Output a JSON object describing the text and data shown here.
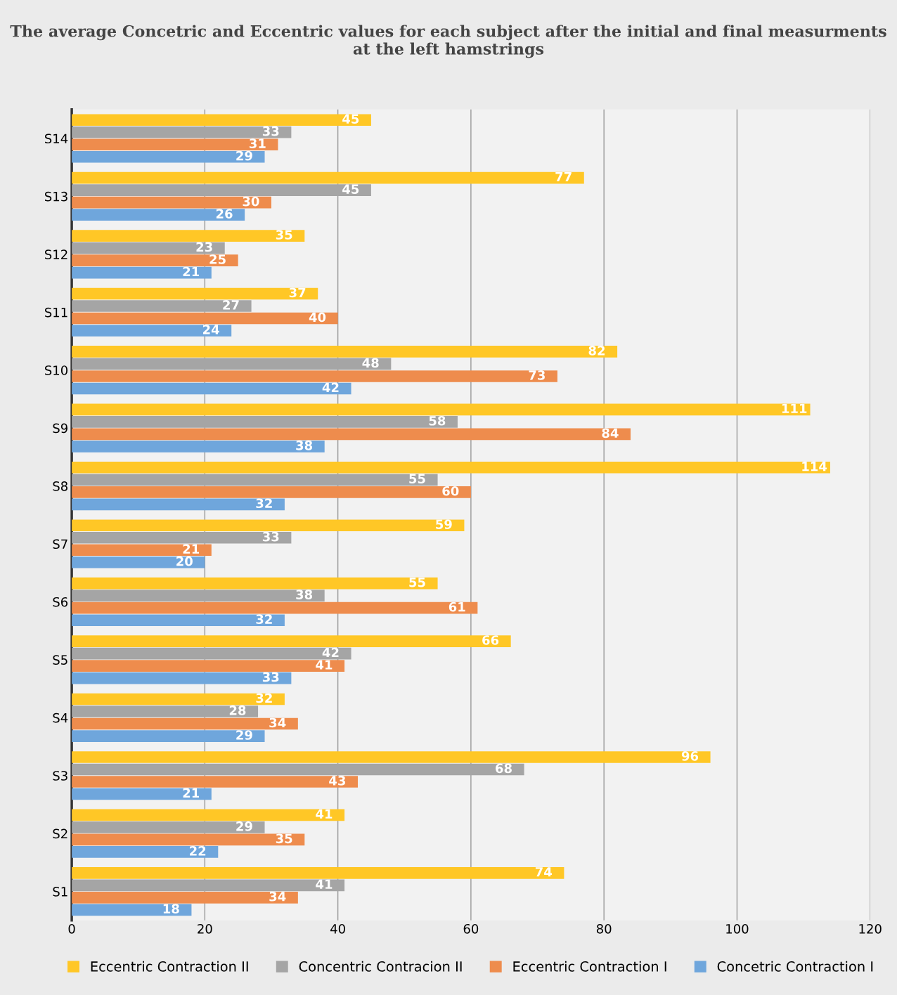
{
  "chart_data": {
    "type": "bar",
    "orientation": "horizontal",
    "title": "The average Concetric and Eccentric values for each subject after the initial and final measurments at the left hamstrings",
    "categories": [
      "S14",
      "S13",
      "S12",
      "S11",
      "S10",
      "S9",
      "S8",
      "S7",
      "S6",
      "S5",
      "S4",
      "S3",
      "S2",
      "S1"
    ],
    "series": [
      {
        "name": "Eccentric Contraction II",
        "color": "#ffc726",
        "values": [
          45,
          77,
          35,
          37,
          82,
          111,
          114,
          59,
          55,
          66,
          32,
          96,
          41,
          74
        ]
      },
      {
        "name": "Concentric Contracion II",
        "color": "#a5a5a5",
        "values": [
          33,
          45,
          23,
          27,
          48,
          58,
          55,
          33,
          38,
          42,
          28,
          68,
          29,
          41
        ]
      },
      {
        "name": "Eccentric Contraction I",
        "color": "#ee8c4d",
        "values": [
          31,
          30,
          25,
          40,
          73,
          84,
          60,
          21,
          61,
          41,
          34,
          43,
          35,
          34
        ]
      },
      {
        "name": "Concetric Contraction I",
        "color": "#6fa6dc",
        "values": [
          29,
          26,
          21,
          24,
          42,
          38,
          32,
          20,
          32,
          33,
          29,
          21,
          22,
          18
        ]
      }
    ],
    "xlim": [
      0,
      120
    ],
    "xticks": [
      0,
      20,
      40,
      60,
      80,
      100,
      120
    ],
    "grid": "x",
    "legend": "bottom",
    "data_labels": true
  }
}
